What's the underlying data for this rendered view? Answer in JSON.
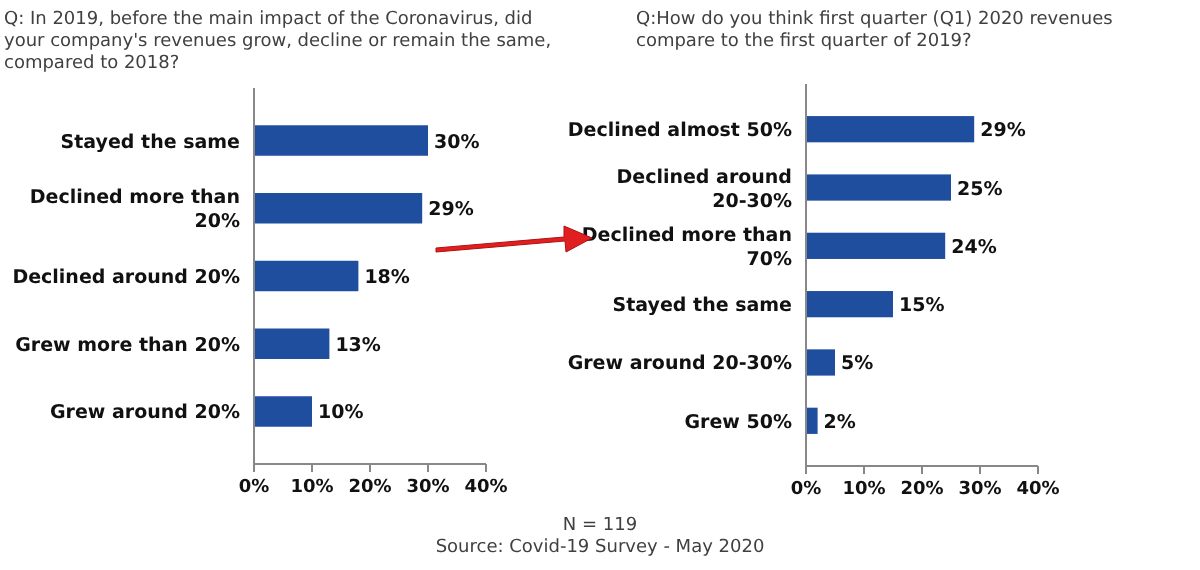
{
  "chart_data": [
    {
      "type": "bar",
      "orientation": "horizontal",
      "title": "Q: In 2019, before the main impact of the Coronavirus, did your company's revenues grow, decline or remain the same, compared to 2018?",
      "categories": [
        "Stayed the same",
        "Declined more than 20%",
        "Declined around 20%",
        "Grew more than 20%",
        "Grew around 20%"
      ],
      "values": [
        30,
        29,
        18,
        13,
        10
      ],
      "value_labels": [
        "30%",
        "29%",
        "18%",
        "13%",
        "10%"
      ],
      "color": "#1f4e9e",
      "xlim": [
        0,
        40
      ],
      "xticks": [
        {
          "value": 0,
          "label": "0%"
        },
        {
          "value": 10,
          "label": "10%"
        },
        {
          "value": 20,
          "label": "20%"
        },
        {
          "value": 30,
          "label": "30%"
        },
        {
          "value": 40,
          "label": "40%"
        }
      ],
      "annotations": [
        "N = 119",
        "Source: Covid-19 Survey - May 2020"
      ]
    },
    {
      "type": "bar",
      "orientation": "horizontal",
      "title": "Q:How do you think first quarter (Q1) 2020 revenues compare to the first quarter of 2019?",
      "categories": [
        "Declined almost 50%",
        "Declined around 20-30%",
        "Declined more than 70%",
        "Stayed the same",
        "Grew around 20-30%",
        "Grew 50%"
      ],
      "values": [
        29,
        25,
        24,
        15,
        5,
        2
      ],
      "value_labels": [
        "29%",
        "25%",
        "24%",
        "15%",
        "5%",
        "2%"
      ],
      "color": "#1f4e9e",
      "xlim": [
        0,
        40
      ],
      "xticks": [
        {
          "value": 0,
          "label": "0%"
        },
        {
          "value": 10,
          "label": "10%"
        },
        {
          "value": 20,
          "label": "20%"
        },
        {
          "value": 30,
          "label": "30%"
        },
        {
          "value": 40,
          "label": "40%"
        }
      ]
    }
  ]
}
